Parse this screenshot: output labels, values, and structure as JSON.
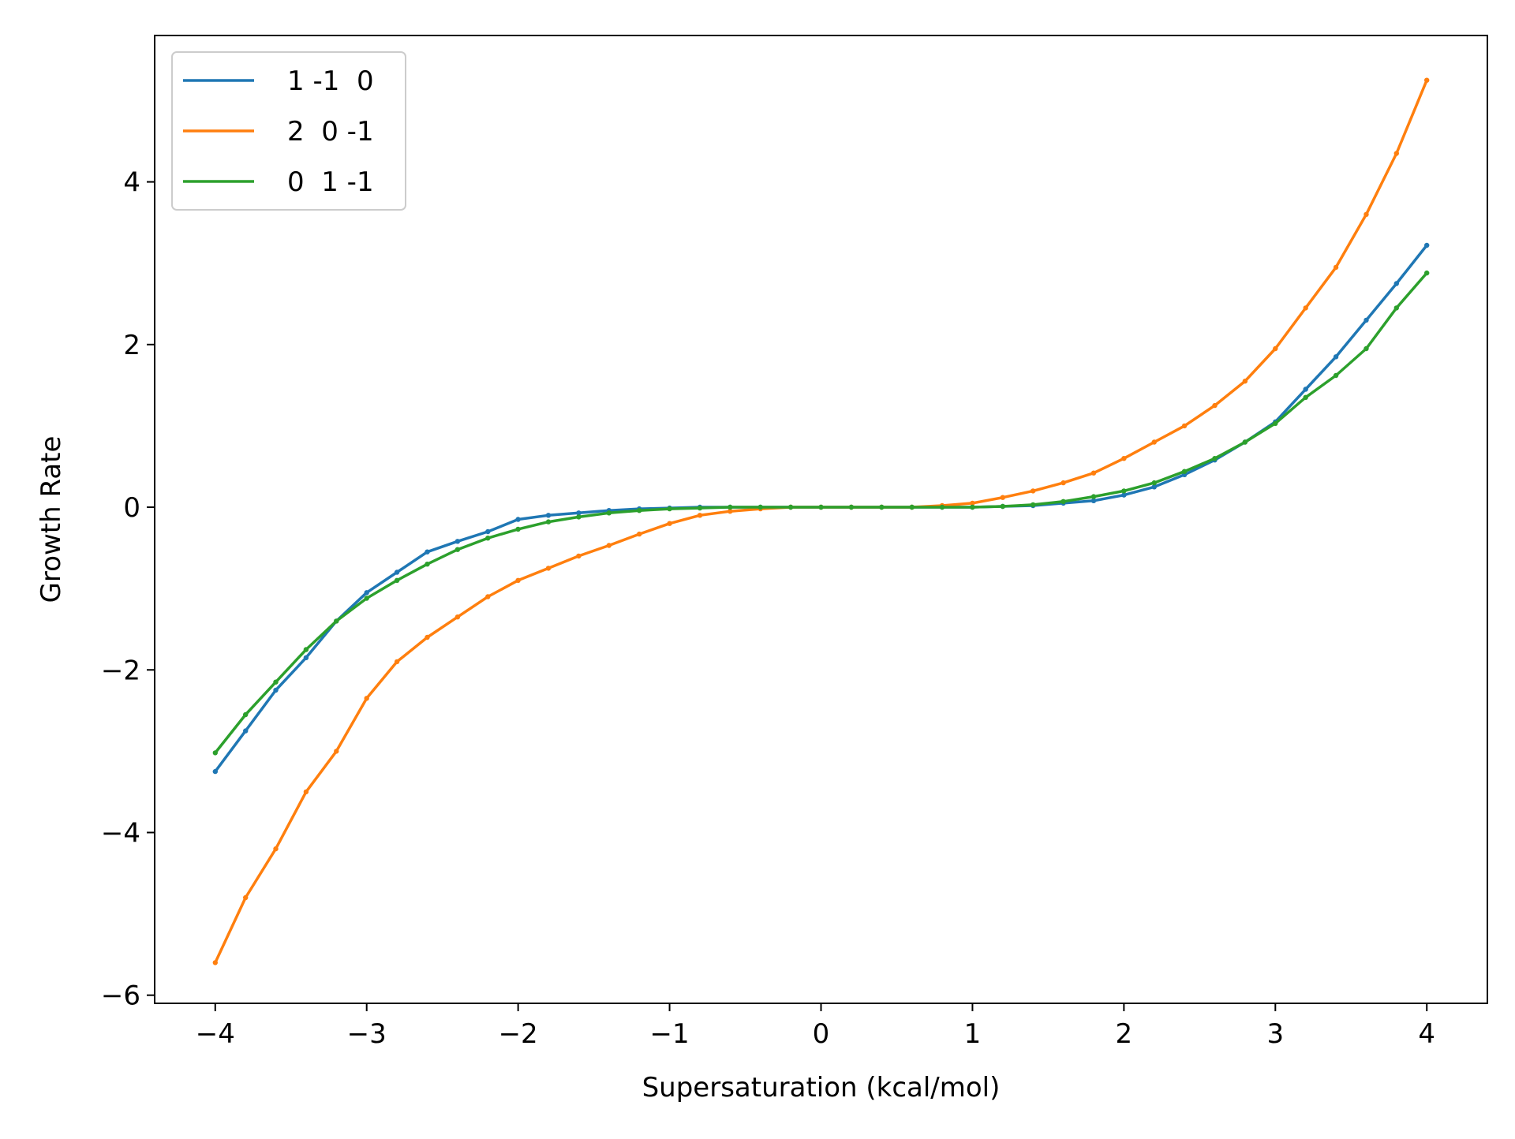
{
  "chart_data": {
    "type": "line",
    "title": "",
    "xlabel": "Supersaturation (kcal/mol)",
    "ylabel": "Growth Rate",
    "xlim": [
      -4.4,
      4.4
    ],
    "ylim": [
      -6.1,
      5.8
    ],
    "xticks": [
      -4,
      -3,
      -2,
      -1,
      0,
      1,
      2,
      3,
      4
    ],
    "xtick_labels": [
      "−4",
      "−3",
      "−2",
      "−1",
      "0",
      "1",
      "2",
      "3",
      "4"
    ],
    "yticks": [
      -6,
      -4,
      -2,
      0,
      2,
      4
    ],
    "ytick_labels": [
      "−6",
      "−4",
      "−2",
      "0",
      "2",
      "4"
    ],
    "grid": false,
    "legend_position": "top-left",
    "x": [
      -4.0,
      -3.8,
      -3.6,
      -3.4,
      -3.2,
      -3.0,
      -2.8,
      -2.6,
      -2.4,
      -2.2,
      -2.0,
      -1.8,
      -1.6,
      -1.4,
      -1.2,
      -1.0,
      -0.8,
      -0.6,
      -0.4,
      -0.2,
      0.0,
      0.2,
      0.4,
      0.6,
      0.8,
      1.0,
      1.2,
      1.4,
      1.6,
      1.8,
      2.0,
      2.2,
      2.4,
      2.6,
      2.8,
      3.0,
      3.2,
      3.4,
      3.6,
      3.8,
      4.0
    ],
    "series": [
      {
        "name": "1 -1  0",
        "color": "#1f77b4",
        "values": [
          -3.25,
          -2.75,
          -2.25,
          -1.85,
          -1.4,
          -1.05,
          -0.8,
          -0.55,
          -0.42,
          -0.3,
          -0.15,
          -0.1,
          -0.07,
          -0.04,
          -0.02,
          -0.01,
          0.0,
          0.0,
          0.0,
          0.0,
          0.0,
          0.0,
          0.0,
          0.0,
          0.0,
          0.0,
          0.01,
          0.02,
          0.05,
          0.08,
          0.15,
          0.25,
          0.4,
          0.58,
          0.8,
          1.05,
          1.45,
          1.85,
          2.3,
          2.75,
          3.22
        ]
      },
      {
        "name": "2  0 -1",
        "color": "#ff7f0e",
        "values": [
          -5.6,
          -4.8,
          -4.2,
          -3.5,
          -3.0,
          -2.35,
          -1.9,
          -1.6,
          -1.35,
          -1.1,
          -0.9,
          -0.75,
          -0.6,
          -0.47,
          -0.33,
          -0.2,
          -0.1,
          -0.05,
          -0.02,
          0.0,
          0.0,
          0.0,
          0.0,
          0.0,
          0.02,
          0.05,
          0.12,
          0.2,
          0.3,
          0.42,
          0.6,
          0.8,
          1.0,
          1.25,
          1.55,
          1.95,
          2.45,
          2.95,
          3.6,
          4.35,
          5.25
        ]
      },
      {
        "name": "0  1 -1",
        "color": "#2ca02c",
        "values": [
          -3.02,
          -2.55,
          -2.15,
          -1.75,
          -1.4,
          -1.12,
          -0.9,
          -0.7,
          -0.52,
          -0.38,
          -0.27,
          -0.18,
          -0.12,
          -0.07,
          -0.04,
          -0.02,
          -0.01,
          0.0,
          0.0,
          0.0,
          0.0,
          0.0,
          0.0,
          0.0,
          0.0,
          0.0,
          0.01,
          0.03,
          0.07,
          0.13,
          0.2,
          0.3,
          0.44,
          0.6,
          0.8,
          1.03,
          1.35,
          1.62,
          1.95,
          2.45,
          2.88
        ]
      }
    ]
  }
}
